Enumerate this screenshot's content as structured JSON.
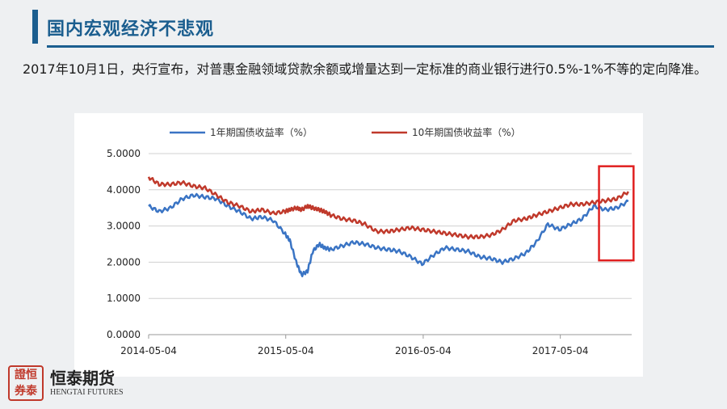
{
  "slide": {
    "title": "国内宏观经济不悲观",
    "subtitle_prefix": "2017年10月1日，央行宣布，对普惠金融领域贷款余额或增量达到一定标准的商业银行进行0.5%-1%不等的定向降准。"
  },
  "logo": {
    "seal_text": "證券 恒泰",
    "name": "恒泰期货",
    "english": "HENGTAI FUTURES"
  },
  "colors": {
    "accent": "#1b5e8f",
    "series_1y": "#3a74c4",
    "series_10y": "#c0392b",
    "highlight_box": "#e02020"
  },
  "chart_data": {
    "type": "line",
    "title": "",
    "xlabel": "",
    "ylabel": "",
    "ylim": [
      0,
      5
    ],
    "yticks": [
      "0.0000",
      "1.0000",
      "2.0000",
      "3.0000",
      "4.0000",
      "5.0000"
    ],
    "xticks": [
      "2014-05-04",
      "2015-05-04",
      "2016-05-04",
      "2017-05-04"
    ],
    "legend_position": "top",
    "grid": "horizontal",
    "highlight": {
      "x_start": "2017-08-15",
      "x_end": "2017-11-15",
      "y_range": [
        2.05,
        4.65
      ]
    },
    "x": [
      "2014-05-04",
      "2014-06-01",
      "2014-07-01",
      "2014-08-01",
      "2014-09-01",
      "2014-10-01",
      "2014-11-01",
      "2014-12-01",
      "2015-01-01",
      "2015-02-01",
      "2015-03-01",
      "2015-04-01",
      "2015-05-01",
      "2015-05-15",
      "2015-06-01",
      "2015-06-15",
      "2015-07-01",
      "2015-07-15",
      "2015-08-01",
      "2015-08-15",
      "2015-09-01",
      "2015-10-01",
      "2015-11-01",
      "2015-12-01",
      "2016-01-01",
      "2016-02-01",
      "2016-03-01",
      "2016-04-01",
      "2016-05-01",
      "2016-06-01",
      "2016-07-01",
      "2016-08-01",
      "2016-09-01",
      "2016-10-01",
      "2016-11-01",
      "2016-12-01",
      "2017-01-01",
      "2017-02-01",
      "2017-03-01",
      "2017-04-01",
      "2017-05-01",
      "2017-06-01",
      "2017-07-01",
      "2017-08-01",
      "2017-09-01",
      "2017-10-01",
      "2017-11-01"
    ],
    "series": [
      {
        "name": "1年期国债收益率（%）",
        "values": [
          3.55,
          3.4,
          3.5,
          3.75,
          3.85,
          3.8,
          3.75,
          3.55,
          3.4,
          3.2,
          3.25,
          3.15,
          2.8,
          2.6,
          2.0,
          1.65,
          1.75,
          2.3,
          2.5,
          2.4,
          2.35,
          2.45,
          2.55,
          2.5,
          2.4,
          2.35,
          2.3,
          2.15,
          1.95,
          2.2,
          2.4,
          2.35,
          2.3,
          2.15,
          2.1,
          2.0,
          2.1,
          2.25,
          2.55,
          3.05,
          2.9,
          3.05,
          3.2,
          3.55,
          3.45,
          3.5,
          3.68
        ]
      },
      {
        "name": "10年期国债收益率（%）",
        "values": [
          4.35,
          4.15,
          4.15,
          4.2,
          4.1,
          4.05,
          3.85,
          3.65,
          3.55,
          3.4,
          3.45,
          3.35,
          3.4,
          3.45,
          3.5,
          3.45,
          3.55,
          3.5,
          3.45,
          3.4,
          3.3,
          3.2,
          3.15,
          3.05,
          2.85,
          2.85,
          2.9,
          2.95,
          2.9,
          2.85,
          2.8,
          2.75,
          2.7,
          2.7,
          2.75,
          2.9,
          3.15,
          3.2,
          3.3,
          3.4,
          3.5,
          3.6,
          3.6,
          3.65,
          3.7,
          3.75,
          3.95
        ]
      }
    ]
  }
}
